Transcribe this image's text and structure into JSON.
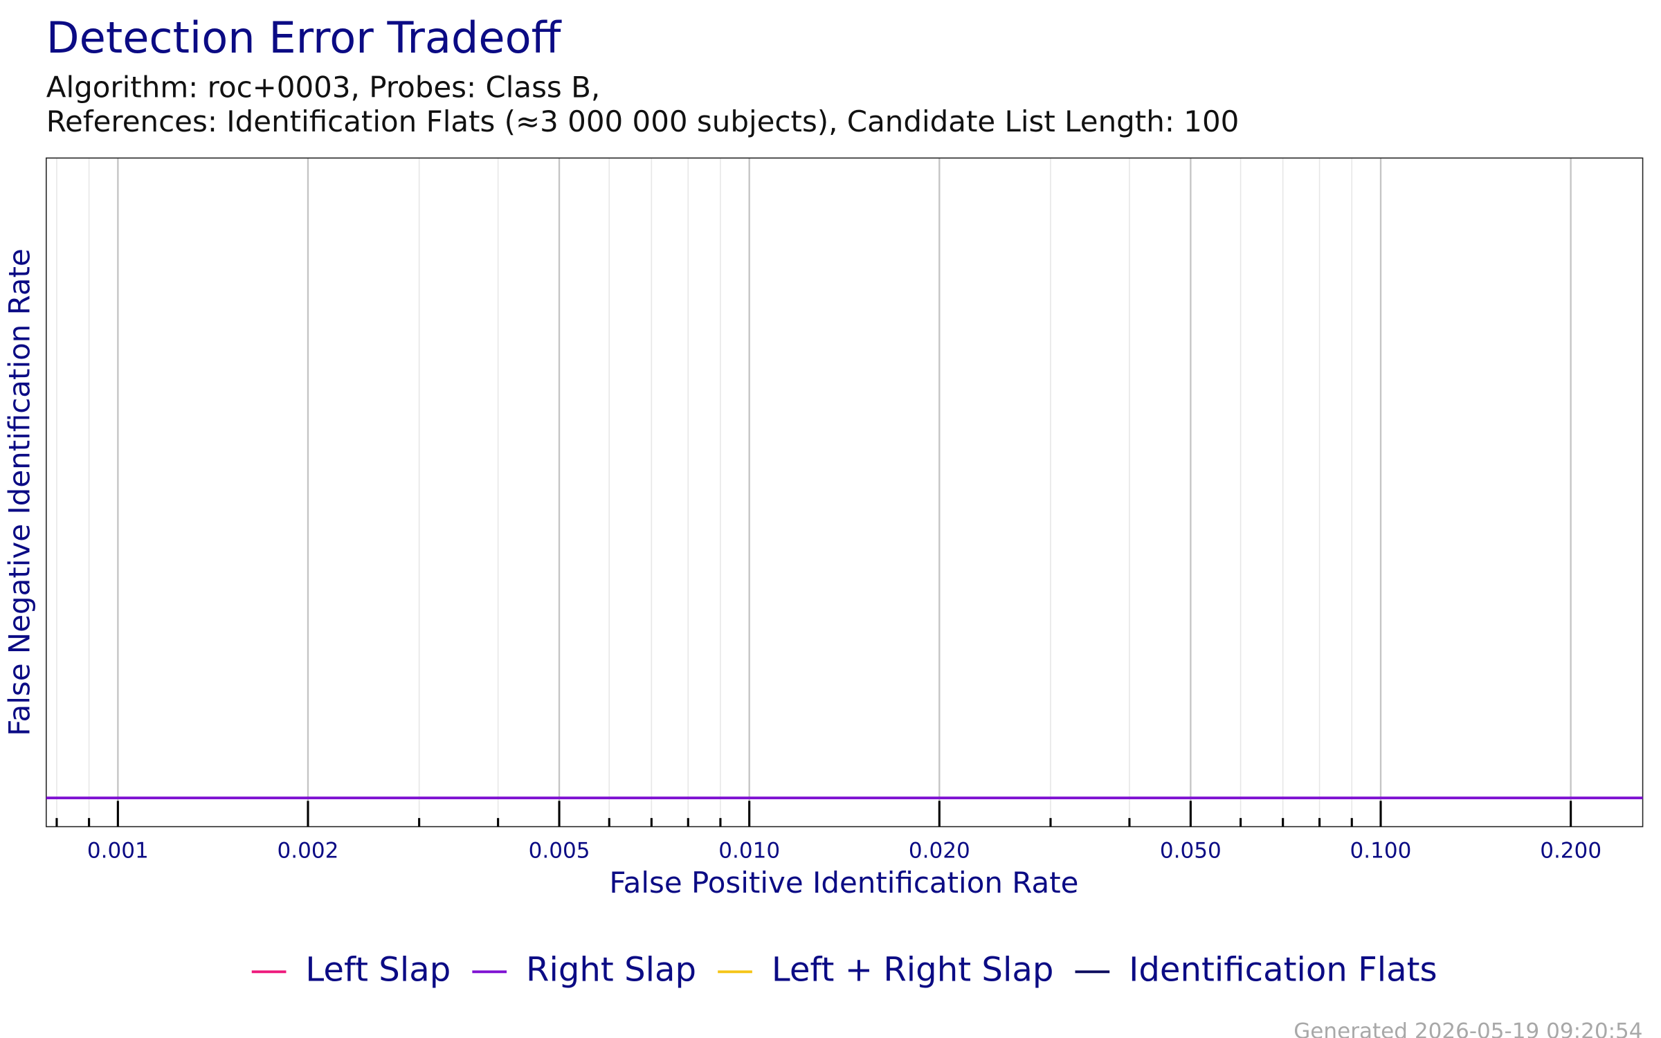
{
  "chart_data": {
    "type": "line",
    "title": "Detection Error Tradeoff",
    "subtitle": [
      "Algorithm: roc+0003, Probes: Class B,",
      "References: Identification Flats (≈3 000 000 subjects), Candidate List Length: 100"
    ],
    "x_label": "False Positive Identification Rate",
    "y_label": "False Negative Identification Rate",
    "footer": "Generated 2026-05-19 09:20:54",
    "x_log": true,
    "grid": true,
    "legend": "bottom",
    "xlim": [
      0.00077,
      0.26
    ],
    "ylim": [
      0,
      1
    ],
    "xticks": [
      0.001,
      0.002,
      0.005,
      {
        "value": 0.01,
        "label": "0.010"
      },
      {
        "value": 0.02,
        "label": "0.020"
      },
      {
        "value": 0.05,
        "label": "0.050"
      },
      {
        "value": 0.1,
        "label": "0.100"
      },
      {
        "value": 0.2,
        "label": "0.200"
      }
    ],
    "xminor_ticks": [
      0.0008,
      0.0009,
      0.003,
      0.004,
      0.006,
      0.007,
      0.008,
      0.009,
      0.03,
      0.04,
      0.06,
      0.07,
      0.08,
      0.09
    ],
    "x": [
      0.00077,
      0.26
    ],
    "series": [
      {
        "name": "Left Slap",
        "color": "#ee1a7c",
        "values": [
          null,
          null
        ]
      },
      {
        "name": "Right Slap",
        "color": "#7f12d2",
        "values": [
          0.043,
          0.043
        ]
      },
      {
        "name": "Left + Right Slap",
        "color": "#f5c518",
        "values": [
          null,
          null
        ]
      },
      {
        "name": "Identification Flats",
        "color": "#0c0c5e",
        "values": [
          null,
          null
        ]
      }
    ]
  }
}
